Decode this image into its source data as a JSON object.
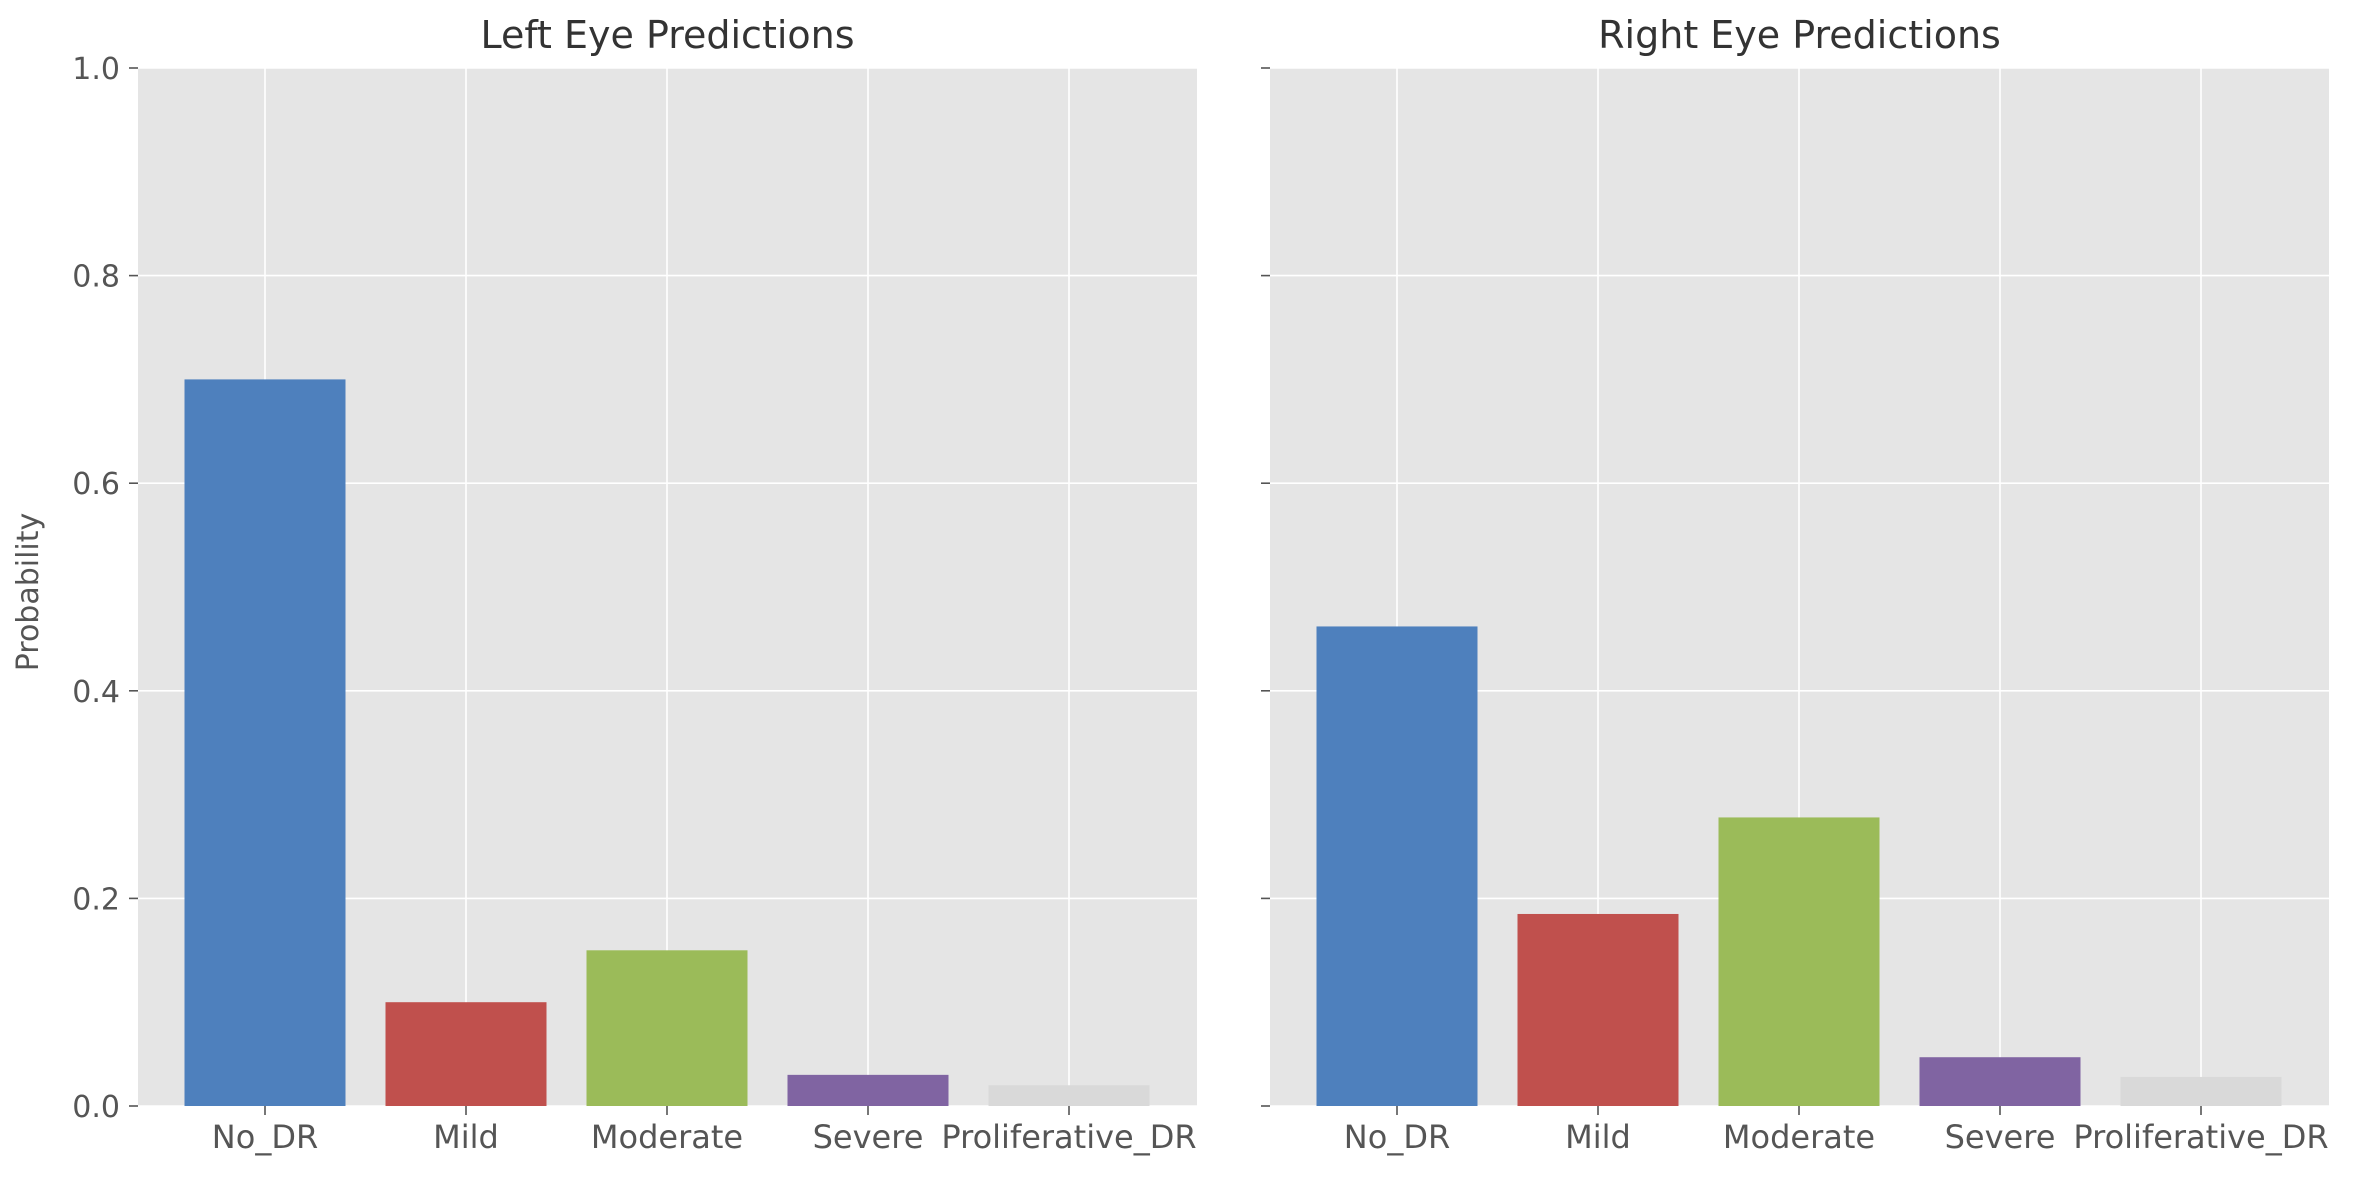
{
  "chart_data": [
    {
      "type": "bar",
      "title": "Left Eye Predictions",
      "xlabel": "",
      "ylabel": "Probability",
      "categories": [
        "No_DR",
        "Mild",
        "Moderate",
        "Severe",
        "Proliferative_DR"
      ],
      "values": [
        0.7,
        0.1,
        0.15,
        0.03,
        0.02
      ],
      "ylim": [
        0,
        1.0
      ],
      "yticks": [
        "0.0",
        "0.2",
        "0.4",
        "0.6",
        "0.8",
        "1.0"
      ],
      "grid": true,
      "colors": [
        "#4e80bd",
        "#c0504d",
        "#9bbb59",
        "#8064a2",
        "#d9d9d9"
      ]
    },
    {
      "type": "bar",
      "title": "Right Eye Predictions",
      "xlabel": "",
      "ylabel": "",
      "categories": [
        "No_DR",
        "Mild",
        "Moderate",
        "Severe",
        "Proliferative_DR"
      ],
      "values": [
        0.462,
        0.185,
        0.278,
        0.047,
        0.028
      ],
      "ylim": [
        0,
        1.0
      ],
      "yticks": [],
      "grid": true,
      "colors": [
        "#4e80bd",
        "#c0504d",
        "#9bbb59",
        "#8064a2",
        "#d9d9d9"
      ]
    }
  ],
  "style": {
    "plot_background": "#e5e5e5",
    "grid_color": "#ffffff",
    "text_color": "#555555",
    "title_color": "#333333"
  }
}
